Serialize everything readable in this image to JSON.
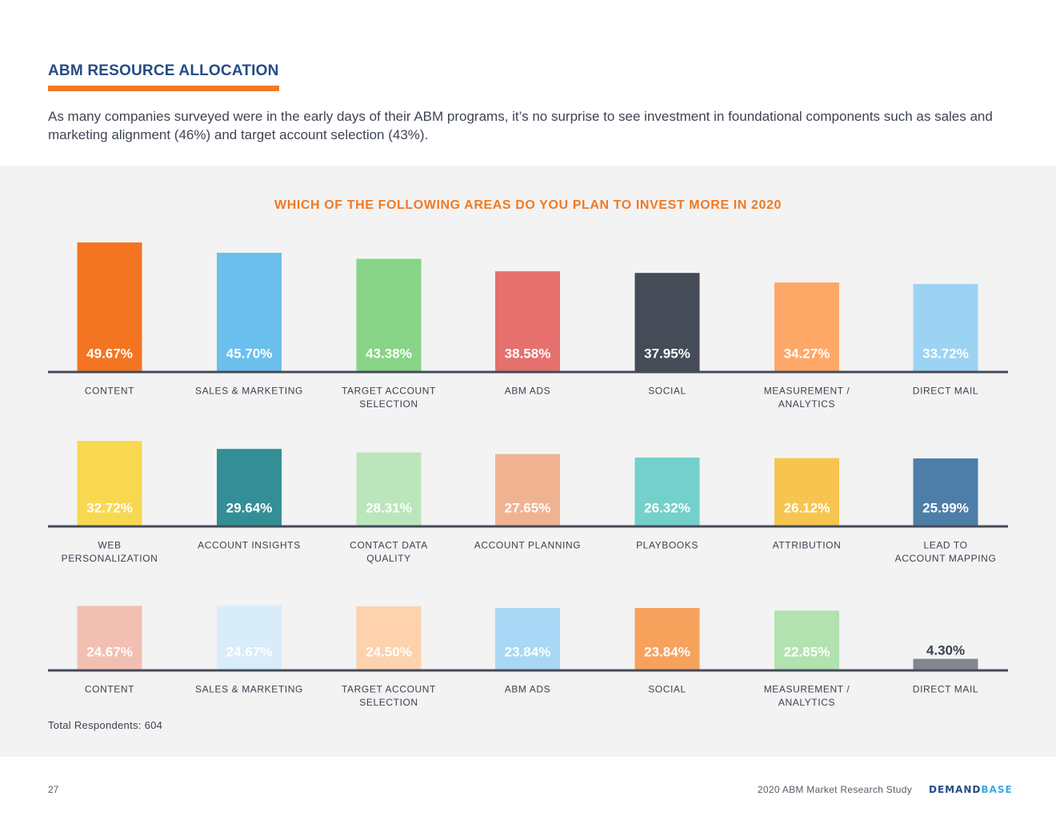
{
  "header": {
    "title": "ABM RESOURCE ALLOCATION",
    "intro": "As many companies surveyed were in the early days of their ABM programs, it’s no surprise to see investment in foundational components such as sales and marketing alignment (46%) and target account selection (43%)."
  },
  "colors": {
    "brand_orange": "#f17924",
    "brand_blue": "#244c86",
    "axis": "#454b58",
    "panel_bg": "#f3f3f3"
  },
  "chart_data": {
    "type": "bar",
    "title": "WHICH OF THE FOLLOWING AREAS DO YOU PLAN TO INVEST MORE IN 2020",
    "unit": "%",
    "grid": false,
    "rows": [
      {
        "categories": [
          [
            "CONTENT"
          ],
          [
            "SALES & MARKETING"
          ],
          [
            "TARGET ACCOUNT",
            "SELECTION"
          ],
          [
            "ABM ADS"
          ],
          [
            "SOCIAL"
          ],
          [
            "MEASUREMENT /",
            "ANALYTICS"
          ],
          [
            "DIRECT MAIL"
          ]
        ],
        "values": [
          49.67,
          45.7,
          43.38,
          38.58,
          37.95,
          34.27,
          33.72
        ],
        "labels": [
          "49.67%",
          "45.70%",
          "43.38%",
          "38.58%",
          "37.95%",
          "34.27%",
          "33.72%"
        ],
        "colors": [
          "#f37521",
          "#6bbfec",
          "#88d487",
          "#e5706d",
          "#454b57",
          "#fea868",
          "#9dd3f2"
        ]
      },
      {
        "categories": [
          [
            "WEB",
            "PERSONALIZATION"
          ],
          [
            "ACCOUNT INSIGHTS"
          ],
          [
            "CONTACT DATA",
            "QUALITY"
          ],
          [
            "ACCOUNT PLANNING"
          ],
          [
            "PLAYBOOKS"
          ],
          [
            "ATTRIBUTION"
          ],
          [
            "LEAD TO",
            "ACCOUNT MAPPING"
          ]
        ],
        "values": [
          32.72,
          29.64,
          28.31,
          27.65,
          26.32,
          26.12,
          25.99
        ],
        "labels": [
          "32.72%",
          "29.64%",
          "28.31%",
          "27.65%",
          "26.32%",
          "26.12%",
          "25.99%"
        ],
        "colors": [
          "#f8d751",
          "#338f95",
          "#bbe6bb",
          "#f0b391",
          "#74d0cb",
          "#f7c54f",
          "#4d7ea7"
        ]
      },
      {
        "categories": [
          [
            "CONTENT"
          ],
          [
            "SALES & MARKETING"
          ],
          [
            "TARGET ACCOUNT",
            "SELECTION"
          ],
          [
            "ABM ADS"
          ],
          [
            "SOCIAL"
          ],
          [
            "MEASUREMENT /",
            "ANALYTICS"
          ],
          [
            "DIRECT MAIL"
          ]
        ],
        "values": [
          24.67,
          24.67,
          24.5,
          23.84,
          23.84,
          22.85,
          4.3
        ],
        "labels": [
          "24.67%",
          "24.67%",
          "24.50%",
          "23.84%",
          "23.84%",
          "22.85%",
          "4.30%"
        ],
        "colors": [
          "#f2c0b2",
          "#d8ecfa",
          "#fdd2ad",
          "#a8d8f5",
          "#f7a25c",
          "#b1e2af",
          "#82868f"
        ]
      }
    ]
  },
  "footnote": "Total Respondents: 604",
  "footer": {
    "page": "27",
    "study": "2020 ABM Market Research Study",
    "logo_part1": "DEMAND",
    "logo_part2": "BASE"
  }
}
